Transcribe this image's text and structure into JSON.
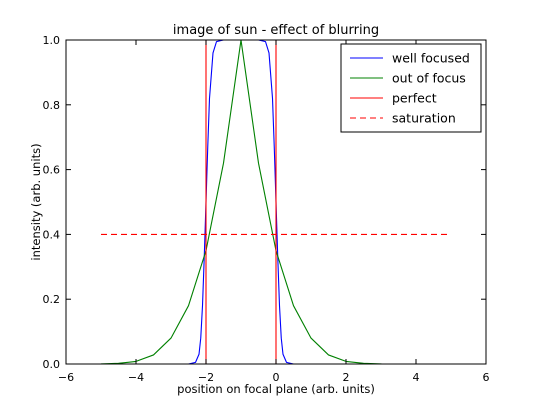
{
  "chart_data": {
    "type": "line",
    "title": "image of sun - effect of blurring",
    "xlabel": "position on focal plane (arb. units)",
    "ylabel": "intensity (arb. units)",
    "xlim": [
      -6,
      6
    ],
    "ylim": [
      0,
      1
    ],
    "xticks": [
      -6,
      -4,
      -2,
      0,
      2,
      4,
      6
    ],
    "xtick_labels": [
      "−6",
      "−4",
      "−2",
      "0",
      "2",
      "4",
      "6"
    ],
    "yticks": [
      0,
      0.2,
      0.4,
      0.6,
      0.8,
      1.0
    ],
    "ytick_labels": [
      "0.0",
      "0.2",
      "0.4",
      "0.6",
      "0.8",
      "1.0"
    ],
    "grid": false,
    "legend_position": "top-right",
    "series": [
      {
        "name": "well focused",
        "color": "#0000ff",
        "style": "solid",
        "x": [
          -5,
          -2.5,
          -2.3,
          -2.2,
          -2.15,
          -2.1,
          -2.05,
          -2.0,
          -1.95,
          -1.9,
          -1.8,
          -1.7,
          -1.5,
          -1.0,
          -0.5,
          -0.3,
          -0.2,
          -0.1,
          -0.05,
          0.0,
          0.05,
          0.1,
          0.15,
          0.2,
          0.3,
          0.5,
          1.0,
          5
        ],
        "y": [
          0,
          0,
          0.005,
          0.03,
          0.08,
          0.18,
          0.33,
          0.5,
          0.67,
          0.82,
          0.96,
          0.995,
          1.0,
          1.0,
          1.0,
          0.995,
          0.96,
          0.82,
          0.67,
          0.5,
          0.33,
          0.18,
          0.08,
          0.03,
          0.005,
          0,
          0,
          0
        ]
      },
      {
        "name": "out of focus",
        "color": "#008000",
        "style": "solid",
        "x": [
          -5,
          -4.5,
          -4,
          -3.5,
          -3,
          -2.5,
          -2,
          -1.5,
          -1,
          -0.5,
          0,
          0.5,
          1,
          1.5,
          2,
          2.5,
          3,
          3.5,
          4,
          4.5,
          5
        ],
        "y": [
          0.0004,
          0.002,
          0.008,
          0.028,
          0.08,
          0.18,
          0.35,
          0.62,
          1.0,
          0.62,
          0.35,
          0.18,
          0.08,
          0.028,
          0.008,
          0.002,
          0.0004,
          0.0,
          0.0,
          0.0,
          0.0
        ]
      },
      {
        "name": "perfect",
        "color": "#ff0000",
        "style": "solid",
        "x": [
          -2,
          -2,
          0,
          0
        ],
        "y": [
          0,
          1,
          1,
          0
        ]
      },
      {
        "name": "saturation",
        "color": "#ff0000",
        "style": "dashed",
        "x": [
          -5,
          5
        ],
        "y": [
          0.4,
          0.4
        ]
      }
    ]
  }
}
